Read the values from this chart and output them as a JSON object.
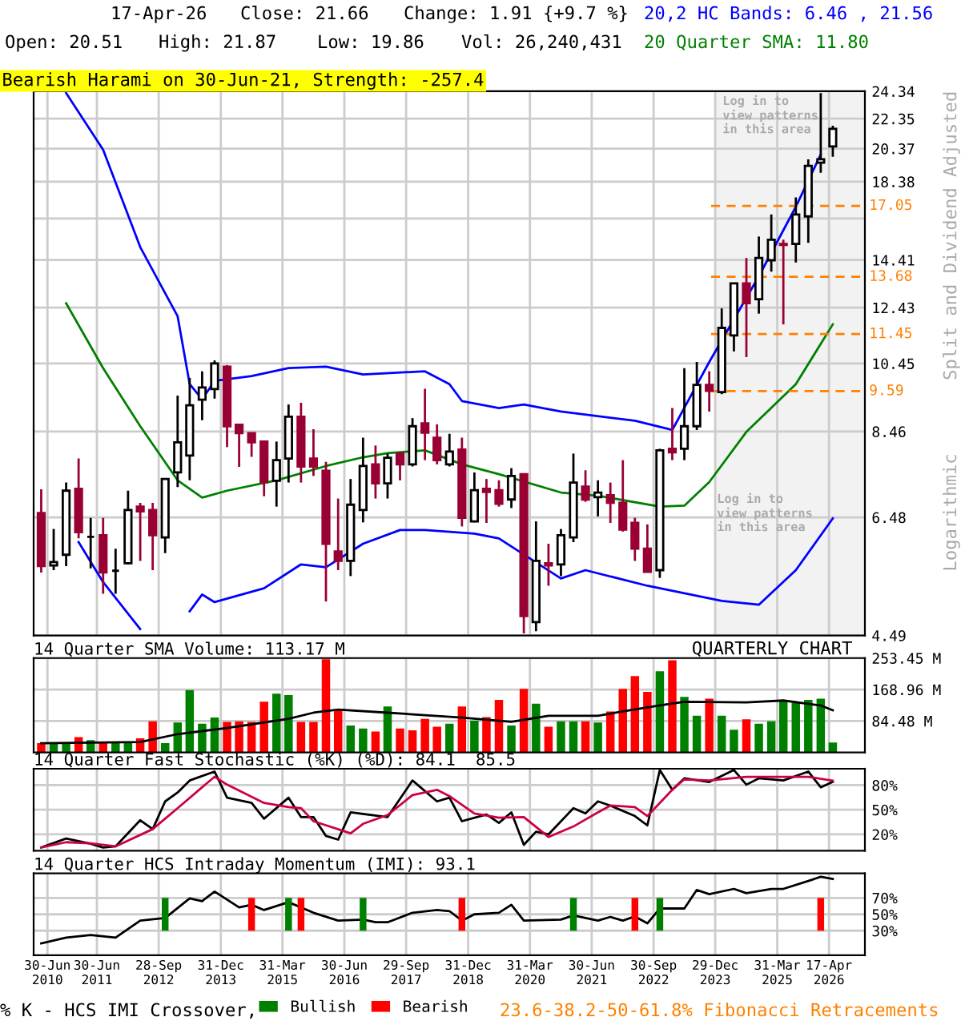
{
  "chart_data": [
    {
      "type": "candlestick",
      "x": [
        "2010-05-15",
        "2010-08-15",
        "2010-11-15",
        "2011-02-15",
        "2011-05-15",
        "2011-08-15",
        "2011-11-15",
        "2012-02-15",
        "2012-05-15",
        "2012-08-15",
        "2012-11-15",
        "2013-02-15",
        "2013-05-15",
        "2013-08-15",
        "2013-11-15",
        "2014-02-15",
        "2014-05-15",
        "2014-08-15",
        "2014-11-15",
        "2015-02-15",
        "2015-05-15",
        "2015-08-15",
        "2015-11-15",
        "2016-02-15",
        "2016-05-15",
        "2016-08-15",
        "2016-11-15",
        "2017-02-15",
        "2017-05-15",
        "2017-08-15",
        "2017-11-15",
        "2018-02-15",
        "2018-05-15",
        "2018-08-15",
        "2018-11-15",
        "2019-02-15",
        "2019-05-15",
        "2019-08-15",
        "2019-11-15",
        "2020-02-15",
        "2020-05-15",
        "2020-08-15",
        "2020-11-15",
        "2021-02-15",
        "2021-05-15",
        "2021-08-15",
        "2021-11-15",
        "2022-02-15",
        "2022-05-15",
        "2022-08-15",
        "2022-11-15",
        "2023-02-15",
        "2023-05-15",
        "2023-08-15",
        "2023-11-15",
        "2024-02-15",
        "2024-05-15",
        "2024-08-15",
        "2024-11-15",
        "2025-02-15",
        "2025-05-15",
        "2025-08-15",
        "2025-11-15",
        "2026-02-15",
        "2026-05-15"
      ],
      "ohlc": [
        [
          6.57,
          7.07,
          5.46,
          5.57
        ],
        [
          5.58,
          6.25,
          5.5,
          5.64
        ],
        [
          5.77,
          7.22,
          5.57,
          7.04
        ],
        [
          7.08,
          7.78,
          6.07,
          6.19
        ],
        [
          6.1,
          6.47,
          5.53,
          6.1
        ],
        [
          6.13,
          6.47,
          5.11,
          5.46
        ],
        [
          5.49,
          5.88,
          5.11,
          5.49
        ],
        [
          5.62,
          7.04,
          5.6,
          6.63
        ],
        [
          6.7,
          6.78,
          5.66,
          6.6
        ],
        [
          6.63,
          6.78,
          5.5,
          6.13
        ],
        [
          6.09,
          7.3,
          5.8,
          7.3
        ],
        [
          7.45,
          9.46,
          7.12,
          8.18
        ],
        [
          7.85,
          9.99,
          7.27,
          9.18
        ],
        [
          9.34,
          10.2,
          8.76,
          9.7
        ],
        [
          9.65,
          10.55,
          9.37,
          10.45
        ],
        [
          10.35,
          10.4,
          8.06,
          8.6
        ],
        [
          8.64,
          8.64,
          7.58,
          8.42
        ],
        [
          8.42,
          8.42,
          7.82,
          8.18
        ],
        [
          8.2,
          8.2,
          6.92,
          7.23
        ],
        [
          7.26,
          8.2,
          6.7,
          7.74
        ],
        [
          7.78,
          9.2,
          7.22,
          8.86
        ],
        [
          8.86,
          9.25,
          7.22,
          7.59
        ],
        [
          7.78,
          8.52,
          7.37,
          7.59
        ],
        [
          7.49,
          7.7,
          4.99,
          5.97
        ],
        [
          5.83,
          6.87,
          5.5,
          5.66
        ],
        [
          5.66,
          7.3,
          5.4,
          6.74
        ],
        [
          6.63,
          8.3,
          6.38,
          7.6
        ],
        [
          7.64,
          8.1,
          6.87,
          7.2
        ],
        [
          7.2,
          7.9,
          6.87,
          7.8
        ],
        [
          7.9,
          7.94,
          7.27,
          7.64
        ],
        [
          7.64,
          8.82,
          7.59,
          8.6
        ],
        [
          8.68,
          9.66,
          7.74,
          8.43
        ],
        [
          8.3,
          8.65,
          7.64,
          7.74
        ],
        [
          7.64,
          8.4,
          7.59,
          7.95
        ],
        [
          8.0,
          8.3,
          6.3,
          6.47
        ],
        [
          6.4,
          7.45,
          6.38,
          7.05
        ],
        [
          7.08,
          7.3,
          6.37,
          7.01
        ],
        [
          7.05,
          7.27,
          6.7,
          6.76
        ],
        [
          6.85,
          7.55,
          6.67,
          7.37
        ],
        [
          7.41,
          7.41,
          4.52,
          4.77
        ],
        [
          4.68,
          6.4,
          4.55,
          5.66
        ],
        [
          5.62,
          5.97,
          5.24,
          5.58
        ],
        [
          5.6,
          6.25,
          5.4,
          6.13
        ],
        [
          6.09,
          7.9,
          6.0,
          7.22
        ],
        [
          7.13,
          7.5,
          6.8,
          6.85
        ],
        [
          6.9,
          7.27,
          6.5,
          7.0
        ],
        [
          6.94,
          7.22,
          6.37,
          6.78
        ],
        [
          6.78,
          7.74,
          6.2,
          6.24
        ],
        [
          6.37,
          6.47,
          5.66,
          5.88
        ],
        [
          5.88,
          6.34,
          5.47,
          5.47
        ],
        [
          5.5,
          8.02,
          5.37,
          7.98
        ],
        [
          8.02,
          9.1,
          7.74,
          7.93
        ],
        [
          8.02,
          10.3,
          7.74,
          8.6
        ],
        [
          8.6,
          10.5,
          8.5,
          9.78
        ],
        [
          9.78,
          10.2,
          9.0,
          9.6
        ],
        [
          9.56,
          12.4,
          9.5,
          11.67
        ],
        [
          11.4,
          13.4,
          10.85,
          13.4
        ],
        [
          13.4,
          14.5,
          10.66,
          12.6
        ],
        [
          12.76,
          15.5,
          12.2,
          14.5
        ],
        [
          14.4,
          16.6,
          13.9,
          15.35
        ],
        [
          15.15,
          15.35,
          11.8,
          15.1
        ],
        [
          15.15,
          17.5,
          14.3,
          16.6
        ],
        [
          16.5,
          19.7,
          15.2,
          19.3
        ],
        [
          19.5,
          24.2,
          18.9,
          19.7
        ],
        [
          20.51,
          21.87,
          19.86,
          21.66
        ]
      ],
      "xlim": [
        "2010-03-20",
        "2027-01-07"
      ],
      "xticks": [
        {
          "value": "2010-06-30",
          "label": null
        },
        {
          "value": "2011-06-30",
          "label": null
        },
        {
          "value": "2012-09-28",
          "label": null
        },
        {
          "value": "2013-12-31",
          "label": null
        },
        {
          "value": "2015-03-31",
          "label": null
        },
        {
          "value": "2016-06-30",
          "label": null
        },
        {
          "value": "2017-09-29",
          "label": null
        },
        {
          "value": "2018-12-31",
          "label": null
        },
        {
          "value": "2020-03-31",
          "label": null
        },
        {
          "value": "2021-06-30",
          "label": null
        },
        {
          "value": "2022-09-30",
          "label": null
        },
        {
          "value": "2023-12-29",
          "label": null
        },
        {
          "value": "2025-03-31",
          "label": null
        },
        {
          "value": "2026-04-17",
          "label": null
        }
      ],
      "ylim": [
        4.49,
        24.34
      ],
      "yticks": [
        4.49,
        6.48,
        8.46,
        10.45,
        12.43,
        14.41,
        {
          "value": 16.39,
          "label": null
        },
        18.38,
        20.37,
        22.35,
        24.34
      ],
      "log": true,
      "grid": true,
      "tick_labels": "y",
      "ylabel": "Split and Dividend Adjusted",
      "series": [
        {
          "type": "line",
          "name": "20,2 HC Bands: 6.46 , 21.56",
          "color": "#0000ff",
          "x": [
            "2010-11-15",
            "2011-08-15",
            "2012-05-15",
            "2013-02-15",
            "2013-05-15",
            "2013-08-15",
            "2013-11-15",
            "2014-08-15",
            "2015-05-15",
            "2016-02-15",
            "2016-11-15",
            "2018-02-15",
            "2018-08-15",
            "2018-11-15",
            "2019-08-15",
            "2020-02-15",
            "2020-11-15",
            "2022-05-15",
            "2023-02-15",
            "2023-11-15",
            "2024-11-15",
            "2025-08-15",
            "2026-02-15"
          ],
          "values": [
            24.2,
            20.3,
            15.0,
            12.1,
            9.8,
            9.35,
            9.9,
            10.05,
            10.3,
            10.35,
            10.1,
            10.2,
            9.8,
            9.3,
            9.1,
            9.2,
            9.0,
            8.75,
            8.5,
            10.5,
            13.7,
            17.0,
            20.0
          ]
        },
        {
          "type": "line",
          "color": "#0000ff",
          "x": [
            "2011-02-15",
            "2011-08-15",
            "2012-05-15",
            "2012-11-15",
            "2013-05-15",
            "2013-08-15",
            "2013-11-15",
            "2014-11-15",
            "2015-08-15",
            "2016-02-15",
            "2016-11-15",
            "2017-08-15",
            "2018-02-15",
            "2019-02-15",
            "2019-08-15",
            "2020-11-15",
            "2021-05-15",
            "2022-08-15",
            "2024-02-15",
            "2024-11-15",
            "2025-08-15",
            "2026-05-15"
          ],
          "values": [
            6.0,
            5.3,
            4.58,
            null,
            4.84,
            5.1,
            4.98,
            5.2,
            5.6,
            5.55,
            5.97,
            6.23,
            6.23,
            6.16,
            6.07,
            5.36,
            5.5,
            5.24,
            5.0,
            4.94,
            5.5,
            6.46
          ]
        },
        {
          "type": "line",
          "name": "20 Quarter SMA: 11.80",
          "color": "#008000",
          "x": [
            "2010-11-15",
            "2011-08-15",
            "2012-05-15",
            "2013-02-15",
            "2013-08-15",
            "2014-02-15",
            "2015-02-15",
            "2016-02-15",
            "2016-11-15",
            "2017-05-15",
            "2018-02-15",
            "2018-11-15",
            "2019-08-15",
            "2020-11-15",
            "2021-08-15",
            "2022-11-15",
            "2023-05-15",
            "2023-11-15",
            "2024-08-15",
            "2025-08-15",
            "2026-05-15"
          ],
          "values": [
            12.6,
            10.3,
            8.6,
            7.27,
            6.89,
            7.04,
            7.27,
            7.6,
            7.81,
            7.91,
            7.98,
            7.64,
            7.41,
            7.0,
            6.93,
            6.7,
            6.72,
            7.23,
            8.45,
            9.8,
            11.8
          ]
        }
      ],
      "ref_lines": [
        {
          "axis": "y",
          "value": 17.05,
          "label": "17.05",
          "color": "#ff8000",
          "line_style": "dashed"
        },
        {
          "axis": "y",
          "value": 13.68,
          "label": "13.68",
          "color": "#ff8000",
          "line_style": "dashed"
        },
        {
          "axis": "y",
          "value": 11.45,
          "label": "11.45",
          "color": "#ff8000",
          "line_style": "dashed"
        },
        {
          "axis": "y",
          "value": 9.59,
          "label": "9.59",
          "color": "#ff8000",
          "line_style": "dashed"
        }
      ],
      "bands": [
        {
          "axis": "x",
          "from": "2023-12-29",
          "to": "2027-01-07",
          "label": "Log in to\nview patterns\nin this area",
          "color": "#f2f2f2"
        }
      ],
      "annotations": [
        "17-Apr-26",
        "Close: 21.66",
        "Change: 1.91 {+9.7 %}",
        "Open: 20.51",
        "High: 21.87",
        "Low: 19.86",
        "Vol: 26,240,431",
        "Bearish Harami on 30-Jun-21, Strength: -257.4",
        "Logarithmic",
        "Log in to\nview patterns\nin this area"
      ]
    },
    {
      "type": "bar",
      "title": "14 Quarter SMA Volume: 113.17 M",
      "x": [
        "2010-05-15",
        "2010-08-15",
        "2010-11-15",
        "2011-02-15",
        "2011-05-15",
        "2011-08-15",
        "2011-11-15",
        "2012-02-15",
        "2012-05-15",
        "2012-08-15",
        "2012-11-15",
        "2013-02-15",
        "2013-05-15",
        "2013-08-15",
        "2013-11-15",
        "2014-02-15",
        "2014-05-15",
        "2014-08-15",
        "2014-11-15",
        "2015-02-15",
        "2015-05-15",
        "2015-08-15",
        "2015-11-15",
        "2016-02-15",
        "2016-05-15",
        "2016-08-15",
        "2016-11-15",
        "2017-02-15",
        "2017-05-15",
        "2017-08-15",
        "2017-11-15",
        "2018-02-15",
        "2018-05-15",
        "2018-08-15",
        "2018-11-15",
        "2019-02-15",
        "2019-05-15",
        "2019-08-15",
        "2019-11-15",
        "2020-02-15",
        "2020-05-15",
        "2020-08-15",
        "2020-11-15",
        "2021-02-15",
        "2021-05-15",
        "2021-08-15",
        "2021-11-15",
        "2022-02-15",
        "2022-05-15",
        "2022-08-15",
        "2022-11-15",
        "2023-02-15",
        "2023-05-15",
        "2023-08-15",
        "2023-11-15",
        "2024-02-15",
        "2024-05-15",
        "2024-08-15",
        "2024-11-15",
        "2025-02-15",
        "2025-05-15",
        "2025-08-15",
        "2025-11-15",
        "2026-02-15",
        "2026-05-15"
      ],
      "values": [
        24.6,
        24.6,
        24.6,
        41,
        32.8,
        24.6,
        24.6,
        24.6,
        37.7,
        83.7,
        24.6,
        80.4,
        167.3,
        77.1,
        93.5,
        82,
        83.7,
        82,
        136,
        157.5,
        154,
        82,
        82,
        250,
        114.8,
        72,
        64,
        55.8,
        123,
        64,
        59,
        90,
        69,
        77,
        123,
        85.3,
        95,
        141,
        72,
        170.6,
        131,
        69,
        83.7,
        83.7,
        83.7,
        80.4,
        110,
        170.6,
        205,
        162.4,
        218,
        247.7,
        149.3,
        98.4,
        144.4,
        98.4,
        60.7,
        88.6,
        77.1,
        83.7,
        137.8,
        132.9,
        141,
        144.4,
        26.24
      ],
      "colors": [
        "#ff0000",
        "#008000",
        "#008000",
        "#ff0000",
        "#008000",
        "#ff0000",
        "#008000",
        "#008000",
        "#ff0000",
        "#ff0000",
        "#008000",
        "#008000",
        "#008000",
        "#008000",
        "#008000",
        "#ff0000",
        "#ff0000",
        "#ff0000",
        "#ff0000",
        "#008000",
        "#008000",
        "#ff0000",
        "#ff0000",
        "#ff0000",
        "#ff0000",
        "#008000",
        "#008000",
        "#ff0000",
        "#008000",
        "#ff0000",
        "#ff0000",
        "#ff0000",
        "#ff0000",
        "#008000",
        "#ff0000",
        "#008000",
        "#ff0000",
        "#ff0000",
        "#008000",
        "#ff0000",
        "#008000",
        "#ff0000",
        "#008000",
        "#008000",
        "#ff0000",
        "#008000",
        "#ff0000",
        "#ff0000",
        "#ff0000",
        "#ff0000",
        "#008000",
        "#ff0000",
        "#008000",
        "#008000",
        "#ff0000",
        "#008000",
        "#008000",
        "#ff0000",
        "#008000",
        "#008000",
        "#008000",
        "#008000",
        "#008000",
        "#008000",
        "#008000"
      ],
      "series": [
        {
          "type": "line",
          "color": "#000000",
          "x": [
            "2010-05-15",
            "2012-05-15",
            "2013-02-15",
            "2014-02-15",
            "2015-05-15",
            "2015-11-15",
            "2016-05-15",
            "2017-05-15",
            "2018-11-15",
            "2019-11-15",
            "2020-08-15",
            "2021-08-15",
            "2022-02-15",
            "2022-11-15",
            "2023-05-15",
            "2024-08-15",
            "2025-05-15",
            "2026-02-15",
            "2026-05-15"
          ],
          "values": [
            24.6,
            27.9,
            49,
            65.6,
            90,
            106.6,
            114.8,
            106.6,
            93.5,
            82,
            98.4,
            98.4,
            110,
            126,
            136,
            134.5,
            139.4,
            126,
            113.17
          ]
        }
      ],
      "xlim": [
        "2010-03-20",
        "2027-01-07"
      ],
      "xticks": [
        {
          "value": "2010-06-30",
          "label": null
        },
        {
          "value": "2011-06-30",
          "label": null
        },
        {
          "value": "2012-09-28",
          "label": null
        },
        {
          "value": "2013-12-31",
          "label": null
        },
        {
          "value": "2015-03-31",
          "label": null
        },
        {
          "value": "2016-06-30",
          "label": null
        },
        {
          "value": "2017-09-29",
          "label": null
        },
        {
          "value": "2018-12-31",
          "label": null
        },
        {
          "value": "2020-03-31",
          "label": null
        },
        {
          "value": "2021-06-30",
          "label": null
        },
        {
          "value": "2022-09-30",
          "label": null
        },
        {
          "value": "2023-12-29",
          "label": null
        },
        {
          "value": "2025-03-31",
          "label": null
        },
        {
          "value": "2026-04-17",
          "label": null
        }
      ],
      "ylim": [
        0,
        253.45
      ],
      "yticks": [
        {
          "value": 84.48,
          "label": "84.48 M"
        },
        {
          "value": 168.96,
          "label": "168.96 M"
        },
        {
          "value": 253.45,
          "label": "253.45 M"
        }
      ],
      "grid": true,
      "tick_labels": "y",
      "annotations": [
        "QUARTERLY CHART"
      ]
    },
    {
      "type": "line",
      "title": "14 Quarter Fast Stochastic (%K) (%D): 84.1  85.5",
      "series": [
        {
          "color": "#000000",
          "x": [
            "2010-05-15",
            "2010-11-15",
            "2011-05-15",
            "2011-08-15",
            "2011-11-15",
            "2012-05-15",
            "2012-08-15",
            "2012-11-15",
            "2013-02-15",
            "2013-05-15",
            "2013-11-15",
            "2014-02-15",
            "2014-08-15",
            "2014-11-15",
            "2015-05-15",
            "2015-08-15",
            "2015-11-15",
            "2016-02-15",
            "2016-05-15",
            "2016-08-15",
            "2017-05-15",
            "2017-11-15",
            "2018-05-15",
            "2018-08-15",
            "2018-11-15",
            "2019-05-15",
            "2019-08-15",
            "2019-11-15",
            "2020-02-15",
            "2020-05-15",
            "2020-08-15",
            "2021-02-15",
            "2021-05-15",
            "2021-08-15",
            "2021-11-15",
            "2022-05-15",
            "2022-08-15",
            "2022-11-15",
            "2023-02-15",
            "2023-05-15",
            "2023-11-15",
            "2024-05-15",
            "2024-08-15",
            "2024-11-15",
            "2025-05-15",
            "2025-11-15",
            "2026-02-15",
            "2026-05-15"
          ],
          "values": [
            4.0,
            14.9,
            8.5,
            4,
            5.3,
            37.2,
            26.4,
            60.2,
            71,
            85.7,
            96.6,
            64.7,
            58.3,
            39.1,
            64.7,
            41.1,
            41.1,
            18.1,
            13.6,
            46.8,
            41.1,
            85.7,
            60.2,
            64.7,
            36,
            44.3,
            34,
            46.8,
            7.2,
            23.2,
            20,
            51.9,
            45.5,
            60.2,
            55.1,
            42.3,
            30.9,
            98.5,
            74.3,
            88.3,
            83.8,
            98.5,
            80.6,
            88.3,
            85.7,
            96.6,
            77.4,
            84.1
          ]
        },
        {
          "color": "#cc0044",
          "x": [
            "2010-05-15",
            "2010-11-15",
            "2011-05-15",
            "2011-11-15",
            "2012-08-15",
            "2013-02-15",
            "2013-08-15",
            "2013-11-15",
            "2014-02-15",
            "2014-11-15",
            "2015-05-15",
            "2015-08-15",
            "2015-11-15",
            "2016-08-15",
            "2016-11-15",
            "2017-05-15",
            "2017-11-15",
            "2018-05-15",
            "2018-08-15",
            "2019-02-15",
            "2019-08-15",
            "2020-02-15",
            "2020-08-15",
            "2021-02-15",
            "2021-08-15",
            "2021-11-15",
            "2022-05-15",
            "2022-08-15",
            "2023-02-15",
            "2023-05-15",
            "2023-11-15",
            "2024-08-15",
            "2025-11-15",
            "2026-05-15"
          ],
          "values": [
            4,
            10.4,
            9.1,
            5.3,
            26.4,
            51.9,
            77.4,
            90.2,
            80.6,
            58.3,
            53.2,
            51.9,
            36,
            21.3,
            32.8,
            43.6,
            67.9,
            74.3,
            66.6,
            45.5,
            40.4,
            41.1,
            16.8,
            29.6,
            46.8,
            55.1,
            53.2,
            42.3,
            74.3,
            87,
            85.7,
            90.2,
            90.2,
            85.5
          ]
        }
      ],
      "xlim": [
        "2010-03-20",
        "2027-01-07"
      ],
      "xticks": [
        {
          "value": "2010-06-30",
          "label": null
        },
        {
          "value": "2011-06-30",
          "label": null
        },
        {
          "value": "2012-09-28",
          "label": null
        },
        {
          "value": "2013-12-31",
          "label": null
        },
        {
          "value": "2015-03-31",
          "label": null
        },
        {
          "value": "2016-06-30",
          "label": null
        },
        {
          "value": "2017-09-29",
          "label": null
        },
        {
          "value": "2018-12-31",
          "label": null
        },
        {
          "value": "2020-03-31",
          "label": null
        },
        {
          "value": "2021-06-30",
          "label": null
        },
        {
          "value": "2022-09-30",
          "label": null
        },
        {
          "value": "2023-12-29",
          "label": null
        },
        {
          "value": "2025-03-31",
          "label": null
        },
        {
          "value": "2026-04-17",
          "label": null
        }
      ],
      "ylim": [
        0,
        100
      ],
      "yticks": [
        {
          "value": 20,
          "label": "20%"
        },
        {
          "value": 50,
          "label": "50%"
        },
        {
          "value": 80,
          "label": "80%"
        }
      ],
      "grid": true,
      "tick_labels": "y"
    },
    {
      "type": "line",
      "title": "14 Quarter HCS Intraday Momentum (IMI): 93.1",
      "series": [
        {
          "color": "#000000",
          "x": [
            "2010-05-15",
            "2010-11-15",
            "2011-05-15",
            "2011-11-15",
            "2012-05-15",
            "2012-11-15",
            "2013-05-15",
            "2013-08-15",
            "2013-11-15",
            "2014-05-15",
            "2014-08-15",
            "2014-11-15",
            "2015-05-15",
            "2015-11-15",
            "2016-05-15",
            "2016-11-15",
            "2017-02-15",
            "2017-05-15",
            "2017-11-15",
            "2018-05-15",
            "2018-08-15",
            "2018-11-15",
            "2019-02-15",
            "2019-08-15",
            "2019-11-15",
            "2020-02-15",
            "2020-11-15",
            "2021-02-15",
            "2021-08-15",
            "2021-11-15",
            "2022-02-15",
            "2022-05-15",
            "2022-08-15",
            "2022-11-15",
            "2023-05-15",
            "2023-08-15",
            "2023-11-15",
            "2024-05-15",
            "2024-08-15",
            "2025-02-15",
            "2025-05-15",
            "2025-11-15",
            "2026-02-15",
            "2026-05-15"
          ],
          "values": [
            14.5,
            21.6,
            24.8,
            21.6,
            42.3,
            45.5,
            69.4,
            66.1,
            77.7,
            58.4,
            61.6,
            55.2,
            64.8,
            51.9,
            42.3,
            43.5,
            40.3,
            40.3,
            51.9,
            55.2,
            53.9,
            42.3,
            50,
            51.9,
            61.6,
            42.3,
            43.5,
            48.7,
            42.3,
            46.8,
            42.3,
            47.4,
            39,
            57.1,
            57.1,
            79.7,
            74.5,
            81,
            75.8,
            81,
            81,
            90.6,
            95.8,
            93.1
          ]
        },
        {
          "type": "bar",
          "name": "Bullish",
          "color": "#008000",
          "x": [
            "2012-11-15",
            "2015-05-15",
            "2016-11-15",
            "2021-02-15",
            "2022-11-15"
          ],
          "values": [
            40,
            40,
            40,
            40,
            40
          ],
          "base": [
            30,
            30,
            30,
            30,
            30
          ]
        },
        {
          "type": "bar",
          "name": "Bearish",
          "color": "#ff0000",
          "x": [
            "2014-08-15",
            "2015-08-15",
            "2018-11-15",
            "2022-05-15",
            "2026-02-15"
          ],
          "values": [
            40,
            40,
            40,
            40,
            40
          ],
          "base": [
            30,
            30,
            30,
            30,
            30
          ]
        }
      ],
      "xlim": [
        "2010-03-20",
        "2027-01-07"
      ],
      "xticks": [
        {
          "value": "2010-06-30",
          "label": "30-Jun\n2010"
        },
        {
          "value": "2011-06-30",
          "label": "30-Jun\n2011"
        },
        {
          "value": "2012-09-28",
          "label": "28-Sep\n2012"
        },
        {
          "value": "2013-12-31",
          "label": "31-Dec\n2013"
        },
        {
          "value": "2015-03-31",
          "label": "31-Mar\n2015"
        },
        {
          "value": "2016-06-30",
          "label": "30-Jun\n2016"
        },
        {
          "value": "2017-09-29",
          "label": "29-Sep\n2017"
        },
        {
          "value": "2018-12-31",
          "label": "31-Dec\n2018"
        },
        {
          "value": "2020-03-31",
          "label": "31-Mar\n2020"
        },
        {
          "value": "2021-06-30",
          "label": "30-Jun\n2021"
        },
        {
          "value": "2022-09-30",
          "label": "30-Sep\n2022"
        },
        {
          "value": "2023-12-29",
          "label": "29-Dec\n2023"
        },
        {
          "value": "2025-03-31",
          "label": "31-Mar\n2025"
        },
        {
          "value": "2026-04-17",
          "label": "17-Apr\n2026"
        }
      ],
      "ylim": [
        0,
        100
      ],
      "yticks": [
        {
          "value": 30,
          "label": "30%"
        },
        {
          "value": 50,
          "label": "50%"
        },
        {
          "value": 70,
          "label": "70%"
        }
      ],
      "grid": true,
      "legend": "bottom",
      "annotations": [
        "% K - HCS IMI Crossover,",
        "23.6-38.2-50-61.8% Fibonacci Retracements"
      ]
    }
  ]
}
